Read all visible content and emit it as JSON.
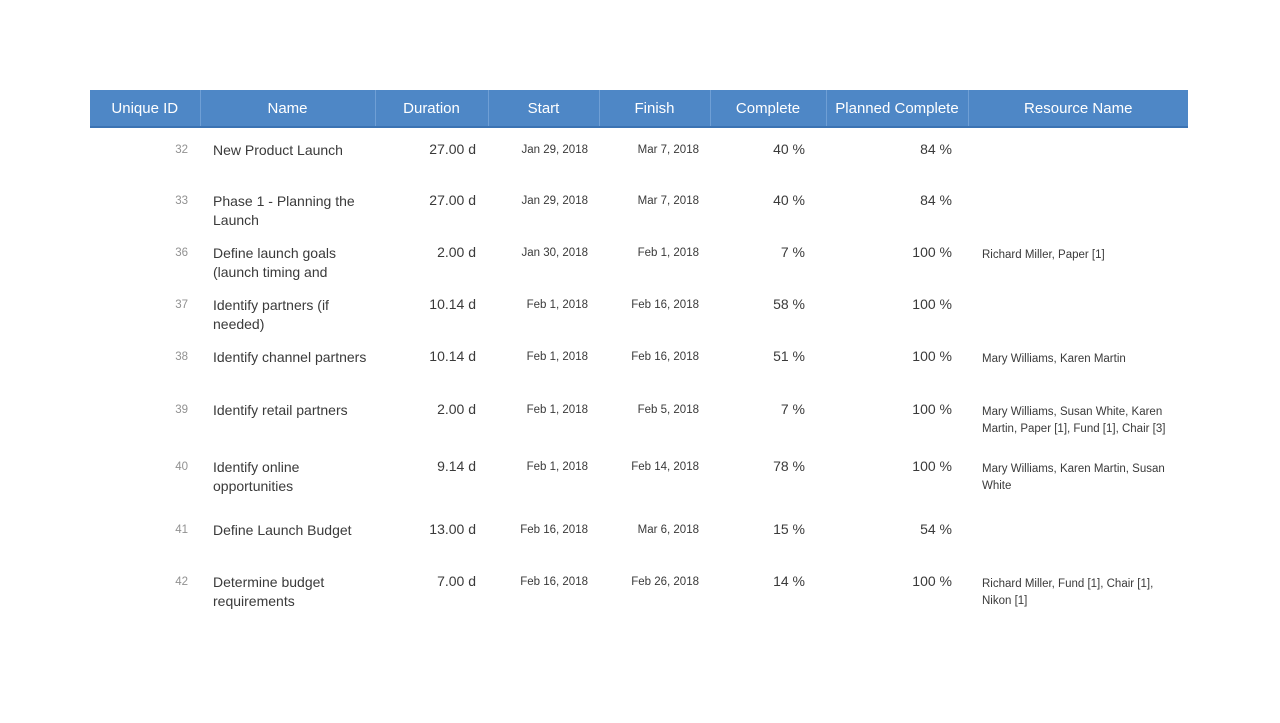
{
  "colors": {
    "page_bg": "#FFFFFF",
    "header_bg": "#4E87C6",
    "header_text": "#FFFFFF",
    "header_divider": "#6F9FD5",
    "header_bottom_border": "#3B73B3",
    "id_text": "#919191",
    "body_text": "#3A3A3A"
  },
  "table": {
    "columns": [
      {
        "key": "unique_id",
        "label": "Unique ID"
      },
      {
        "key": "name",
        "label": "Name"
      },
      {
        "key": "duration",
        "label": "Duration"
      },
      {
        "key": "start",
        "label": "Start"
      },
      {
        "key": "finish",
        "label": "Finish"
      },
      {
        "key": "complete",
        "label": "Complete"
      },
      {
        "key": "planned_complete",
        "label": "Planned Complete"
      },
      {
        "key": "resource_name",
        "label": "Resource Name"
      }
    ],
    "rows": [
      {
        "unique_id": "32",
        "name": "New Product Launch",
        "duration": "27.00 d",
        "start": "Jan 29, 2018",
        "finish": "Mar 7, 2018",
        "complete": "40 %",
        "planned_complete": "84 %",
        "resource_name": ""
      },
      {
        "unique_id": "33",
        "name": "Phase 1 - Planning the Launch",
        "duration": "27.00 d",
        "start": "Jan 29, 2018",
        "finish": "Mar 7, 2018",
        "complete": "40 %",
        "planned_complete": "84 %",
        "resource_name": ""
      },
      {
        "unique_id": "36",
        "name": "Define launch goals (launch timing and",
        "duration": "2.00 d",
        "start": "Jan 30, 2018",
        "finish": "Feb 1, 2018",
        "complete": "7 %",
        "planned_complete": "100 %",
        "resource_name": "Richard Miller, Paper [1]"
      },
      {
        "unique_id": "37",
        "name": "Identify partners (if needed)",
        "duration": "10.14 d",
        "start": "Feb 1, 2018",
        "finish": "Feb 16, 2018",
        "complete": "58 %",
        "planned_complete": "100 %",
        "resource_name": ""
      },
      {
        "unique_id": "38",
        "name": "Identify channel partners",
        "duration": "10.14 d",
        "start": "Feb 1, 2018",
        "finish": "Feb 16, 2018",
        "complete": "51 %",
        "planned_complete": "100 %",
        "resource_name": "Mary Williams, Karen Martin"
      },
      {
        "unique_id": "39",
        "name": "Identify retail partners",
        "duration": "2.00 d",
        "start": "Feb 1, 2018",
        "finish": "Feb 5, 2018",
        "complete": "7 %",
        "planned_complete": "100 %",
        "resource_name": "Mary Williams, Susan White, Karen Martin, Paper [1], Fund [1], Chair [3]"
      },
      {
        "unique_id": "40",
        "name": "Identify online opportunities",
        "duration": "9.14 d",
        "start": "Feb 1, 2018",
        "finish": "Feb 14, 2018",
        "complete": "78 %",
        "planned_complete": "100 %",
        "resource_name": "Mary Williams, Karen Martin, Susan White"
      },
      {
        "unique_id": "41",
        "name": "Define Launch Budget",
        "duration": "13.00 d",
        "start": "Feb 16, 2018",
        "finish": "Mar 6, 2018",
        "complete": "15 %",
        "planned_complete": "54 %",
        "resource_name": ""
      },
      {
        "unique_id": "42",
        "name": "Determine budget requirements",
        "duration": "7.00 d",
        "start": "Feb 16, 2018",
        "finish": "Feb 26, 2018",
        "complete": "14 %",
        "planned_complete": "100 %",
        "resource_name": "Richard Miller, Fund [1], Chair [1], Nikon [1]"
      }
    ]
  }
}
